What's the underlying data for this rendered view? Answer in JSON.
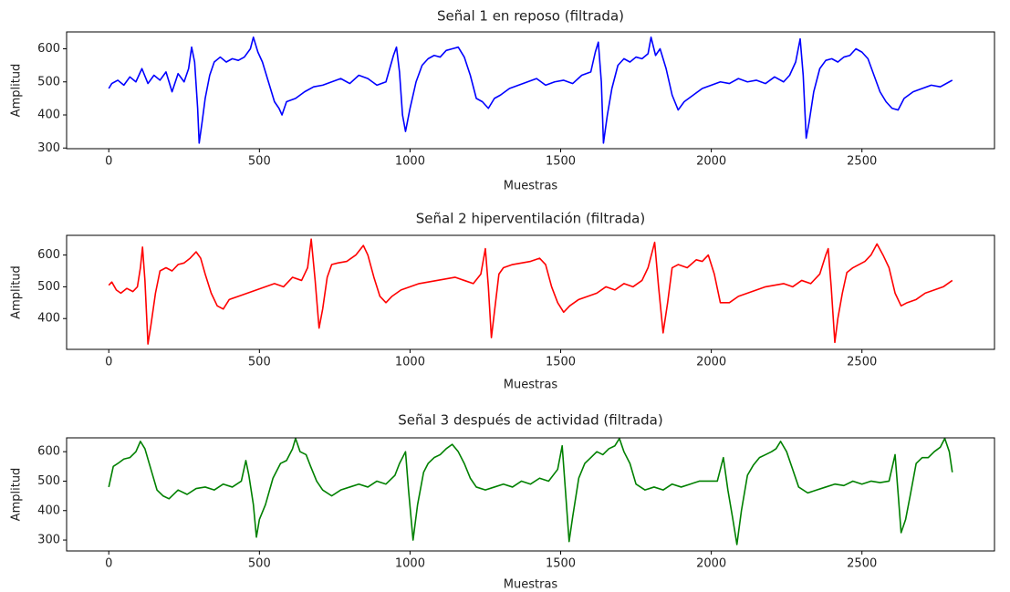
{
  "chart_data": [
    {
      "type": "line",
      "title": "Señal 1 en reposo (filtrada)",
      "xlabel": "Muestras",
      "ylabel": "Amplitud",
      "color": "#0000ff",
      "xlim": [
        -140,
        2940
      ],
      "ylim": [
        298,
        651
      ],
      "xticks": [
        0,
        500,
        1000,
        1500,
        2000,
        2500
      ],
      "yticks": [
        300,
        400,
        500,
        600
      ],
      "x": [
        0,
        10,
        30,
        50,
        70,
        90,
        110,
        130,
        150,
        170,
        190,
        210,
        230,
        250,
        265,
        275,
        285,
        295,
        300,
        310,
        320,
        335,
        350,
        370,
        390,
        410,
        430,
        450,
        470,
        480,
        495,
        510,
        530,
        550,
        565,
        575,
        590,
        620,
        650,
        680,
        710,
        740,
        770,
        800,
        830,
        860,
        890,
        920,
        945,
        955,
        965,
        975,
        985,
        1000,
        1020,
        1040,
        1060,
        1080,
        1100,
        1120,
        1140,
        1160,
        1180,
        1200,
        1220,
        1240,
        1260,
        1280,
        1300,
        1330,
        1360,
        1390,
        1420,
        1450,
        1480,
        1510,
        1540,
        1570,
        1600,
        1615,
        1625,
        1635,
        1642,
        1655,
        1670,
        1690,
        1710,
        1730,
        1750,
        1770,
        1790,
        1800,
        1815,
        1830,
        1850,
        1870,
        1890,
        1910,
        1940,
        1970,
        2000,
        2030,
        2060,
        2090,
        2120,
        2150,
        2180,
        2210,
        2240,
        2260,
        2280,
        2295,
        2305,
        2315,
        2325,
        2340,
        2360,
        2380,
        2400,
        2420,
        2440,
        2460,
        2480,
        2500,
        2520,
        2540,
        2560,
        2580,
        2600,
        2620,
        2640,
        2670,
        2700,
        2730,
        2760,
        2790,
        2800
      ],
      "values": [
        480,
        495,
        505,
        490,
        515,
        500,
        540,
        495,
        520,
        505,
        530,
        470,
        525,
        500,
        540,
        605,
        560,
        420,
        315,
        380,
        450,
        520,
        560,
        575,
        560,
        570,
        565,
        575,
        600,
        635,
        590,
        560,
        500,
        440,
        420,
        400,
        440,
        450,
        470,
        485,
        490,
        500,
        510,
        495,
        520,
        510,
        490,
        500,
        580,
        605,
        530,
        400,
        350,
        420,
        500,
        550,
        570,
        580,
        575,
        595,
        600,
        605,
        575,
        520,
        450,
        440,
        420,
        450,
        460,
        480,
        490,
        500,
        510,
        490,
        500,
        505,
        495,
        520,
        530,
        590,
        620,
        500,
        315,
        400,
        480,
        550,
        570,
        560,
        575,
        570,
        585,
        635,
        580,
        600,
        540,
        460,
        415,
        440,
        460,
        480,
        490,
        500,
        495,
        510,
        500,
        505,
        495,
        515,
        500,
        520,
        560,
        630,
        520,
        330,
        380,
        470,
        540,
        565,
        570,
        560,
        575,
        580,
        600,
        590,
        570,
        520,
        470,
        440,
        420,
        415,
        450,
        470,
        480,
        490,
        485,
        500,
        505
      ]
    },
    {
      "type": "line",
      "title": "Señal 2 hiperventilación (filtrada)",
      "xlabel": "Muestras",
      "ylabel": "Amplitud",
      "color": "#ff0000",
      "xlim": [
        -140,
        2940
      ],
      "ylim": [
        303,
        662
      ],
      "xticks": [
        0,
        500,
        1000,
        1500,
        2000,
        2500
      ],
      "yticks": [
        400,
        500,
        600
      ],
      "x": [
        0,
        10,
        25,
        40,
        60,
        80,
        95,
        105,
        112,
        120,
        130,
        140,
        155,
        170,
        190,
        210,
        230,
        250,
        270,
        290,
        305,
        320,
        340,
        360,
        380,
        400,
        430,
        460,
        490,
        520,
        550,
        580,
        610,
        640,
        660,
        672,
        685,
        698,
        710,
        725,
        740,
        760,
        790,
        820,
        845,
        860,
        880,
        900,
        920,
        940,
        970,
        1000,
        1030,
        1060,
        1090,
        1120,
        1150,
        1180,
        1210,
        1235,
        1250,
        1260,
        1270,
        1280,
        1295,
        1310,
        1340,
        1370,
        1400,
        1430,
        1450,
        1470,
        1490,
        1510,
        1530,
        1560,
        1590,
        1620,
        1650,
        1680,
        1710,
        1740,
        1770,
        1790,
        1812,
        1825,
        1840,
        1855,
        1870,
        1890,
        1920,
        1950,
        1970,
        1990,
        2010,
        2030,
        2060,
        2090,
        2120,
        2150,
        2180,
        2210,
        2240,
        2270,
        2300,
        2330,
        2360,
        2380,
        2388,
        2398,
        2410,
        2420,
        2435,
        2450,
        2470,
        2490,
        2510,
        2530,
        2550,
        2570,
        2590,
        2610,
        2630,
        2650,
        2680,
        2710,
        2740,
        2770,
        2800
      ],
      "values": [
        505,
        515,
        490,
        480,
        495,
        485,
        500,
        560,
        625,
        520,
        320,
        380,
        480,
        550,
        560,
        550,
        570,
        575,
        590,
        610,
        590,
        540,
        480,
        440,
        430,
        460,
        470,
        480,
        490,
        500,
        510,
        500,
        530,
        520,
        560,
        650,
        520,
        370,
        430,
        530,
        570,
        575,
        580,
        600,
        630,
        600,
        530,
        470,
        450,
        470,
        490,
        500,
        510,
        515,
        520,
        525,
        530,
        520,
        510,
        540,
        620,
        500,
        340,
        420,
        540,
        560,
        570,
        575,
        580,
        590,
        570,
        500,
        450,
        420,
        440,
        460,
        470,
        480,
        500,
        490,
        510,
        500,
        520,
        560,
        640,
        500,
        355,
        450,
        560,
        570,
        560,
        585,
        580,
        600,
        540,
        450,
        450,
        470,
        480,
        490,
        500,
        505,
        510,
        500,
        520,
        510,
        540,
        600,
        620,
        500,
        325,
        400,
        480,
        545,
        560,
        570,
        580,
        600,
        635,
        600,
        560,
        480,
        440,
        450,
        460,
        480,
        490,
        500,
        520
      ]
    },
    {
      "type": "line",
      "title": "Señal 3 después de actividad (filtrada)",
      "xlabel": "Muestras",
      "ylabel": "Amplitud",
      "color": "#008000",
      "xlim": [
        -140,
        2940
      ],
      "ylim": [
        263,
        647
      ],
      "xticks": [
        0,
        500,
        1000,
        1500,
        2000,
        2500
      ],
      "yticks": [
        300,
        400,
        500,
        600
      ],
      "x": [
        0,
        15,
        30,
        50,
        70,
        90,
        105,
        120,
        140,
        160,
        180,
        200,
        230,
        260,
        290,
        320,
        350,
        380,
        410,
        440,
        455,
        465,
        480,
        490,
        500,
        520,
        545,
        570,
        590,
        610,
        620,
        635,
        655,
        670,
        690,
        710,
        740,
        770,
        800,
        830,
        860,
        890,
        920,
        950,
        965,
        985,
        995,
        1010,
        1025,
        1045,
        1060,
        1080,
        1100,
        1120,
        1140,
        1160,
        1180,
        1200,
        1220,
        1250,
        1280,
        1310,
        1340,
        1370,
        1400,
        1430,
        1460,
        1490,
        1505,
        1515,
        1528,
        1540,
        1560,
        1580,
        1600,
        1620,
        1640,
        1660,
        1680,
        1695,
        1710,
        1730,
        1750,
        1780,
        1810,
        1840,
        1870,
        1900,
        1930,
        1960,
        1990,
        2020,
        2040,
        2055,
        2070,
        2085,
        2100,
        2120,
        2140,
        2160,
        2180,
        2200,
        2215,
        2230,
        2250,
        2270,
        2290,
        2320,
        2350,
        2380,
        2410,
        2440,
        2470,
        2500,
        2530,
        2560,
        2590,
        2610,
        2620,
        2630,
        2645,
        2660,
        2680,
        2700,
        2720,
        2740,
        2760,
        2775,
        2790,
        2800
      ],
      "values": [
        480,
        550,
        560,
        575,
        580,
        600,
        635,
        610,
        540,
        470,
        450,
        440,
        470,
        455,
        475,
        480,
        470,
        490,
        480,
        500,
        570,
        520,
        420,
        310,
        370,
        420,
        510,
        560,
        570,
        610,
        645,
        600,
        590,
        550,
        500,
        470,
        450,
        470,
        480,
        490,
        480,
        500,
        490,
        520,
        560,
        600,
        470,
        300,
        420,
        530,
        560,
        580,
        590,
        610,
        625,
        600,
        560,
        510,
        480,
        470,
        480,
        490,
        480,
        500,
        490,
        510,
        500,
        540,
        620,
        480,
        295,
        380,
        510,
        560,
        580,
        600,
        590,
        610,
        620,
        645,
        600,
        560,
        490,
        470,
        480,
        470,
        490,
        480,
        490,
        500,
        500,
        500,
        580,
        470,
        380,
        285,
        400,
        520,
        555,
        580,
        590,
        600,
        610,
        635,
        600,
        540,
        480,
        460,
        470,
        480,
        490,
        485,
        500,
        490,
        500,
        495,
        500,
        590,
        460,
        325,
        370,
        450,
        560,
        580,
        580,
        600,
        615,
        645,
        600,
        530
      ]
    }
  ]
}
